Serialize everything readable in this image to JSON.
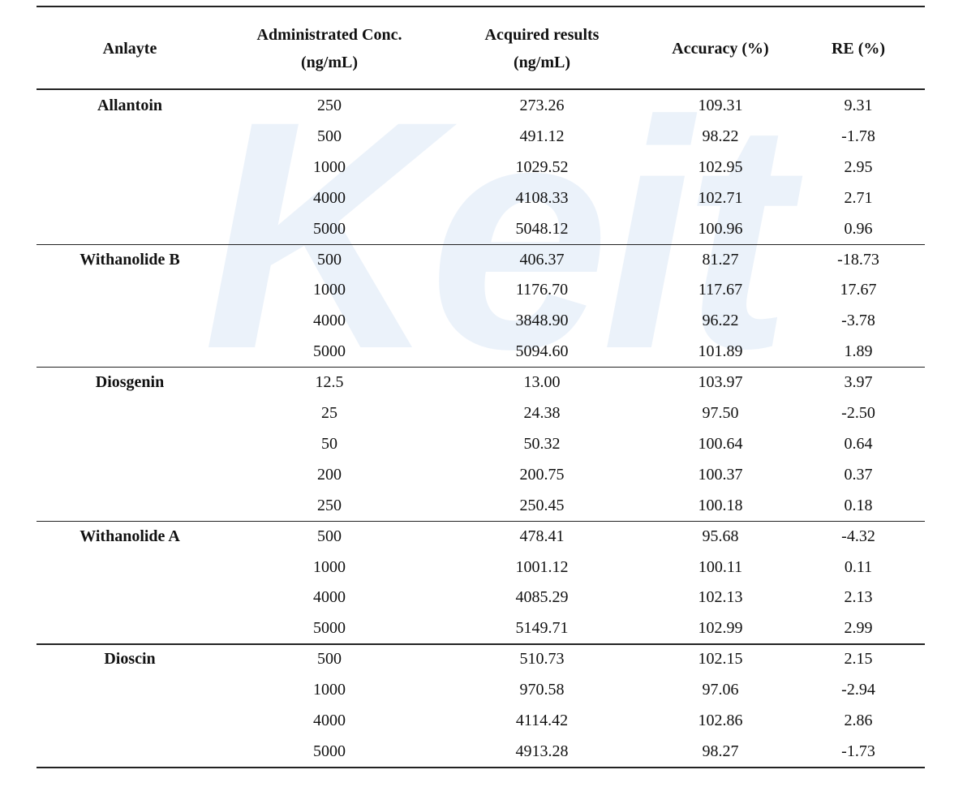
{
  "watermark": "Keit",
  "table": {
    "header": [
      [
        "Anlayte"
      ],
      [
        "Administrated Conc.",
        "(ng/mL)"
      ],
      [
        "Acquired results",
        "(ng/mL)"
      ],
      [
        "Accuracy (%)"
      ],
      [
        "RE (%)"
      ]
    ],
    "groups": [
      {
        "analyte": "Allantoin",
        "rows": [
          [
            "250",
            "273.26",
            "109.31",
            "9.31"
          ],
          [
            "500",
            "491.12",
            "98.22",
            "-1.78"
          ],
          [
            "1000",
            "1029.52",
            "102.95",
            "2.95"
          ],
          [
            "4000",
            "4108.33",
            "102.71",
            "2.71"
          ],
          [
            "5000",
            "5048.12",
            "100.96",
            "0.96"
          ]
        ]
      },
      {
        "analyte": "Withanolide B",
        "rows": [
          [
            "500",
            "406.37",
            "81.27",
            "-18.73"
          ],
          [
            "1000",
            "1176.70",
            "117.67",
            "17.67"
          ],
          [
            "4000",
            "3848.90",
            "96.22",
            "-3.78"
          ],
          [
            "5000",
            "5094.60",
            "101.89",
            "1.89"
          ]
        ]
      },
      {
        "analyte": "Diosgenin",
        "rows": [
          [
            "12.5",
            "13.00",
            "103.97",
            "3.97"
          ],
          [
            "25",
            "24.38",
            "97.50",
            "-2.50"
          ],
          [
            "50",
            "50.32",
            "100.64",
            "0.64"
          ],
          [
            "200",
            "200.75",
            "100.37",
            "0.37"
          ],
          [
            "250",
            "250.45",
            "100.18",
            "0.18"
          ]
        ]
      },
      {
        "analyte": "Withanolide A",
        "rows": [
          [
            "500",
            "478.41",
            "95.68",
            "-4.32"
          ],
          [
            "1000",
            "1001.12",
            "100.11",
            "0.11"
          ],
          [
            "4000",
            "4085.29",
            "102.13",
            "2.13"
          ],
          [
            "5000",
            "5149.71",
            "102.99",
            "2.99"
          ]
        ]
      },
      {
        "analyte": "Dioscin",
        "rows": [
          [
            "500",
            "510.73",
            "102.15",
            "2.15"
          ],
          [
            "1000",
            "970.58",
            "97.06",
            "-2.94"
          ],
          [
            "4000",
            "4114.42",
            "102.86",
            "2.86"
          ],
          [
            "5000",
            "4913.28",
            "98.27",
            "-1.73"
          ]
        ]
      }
    ]
  }
}
